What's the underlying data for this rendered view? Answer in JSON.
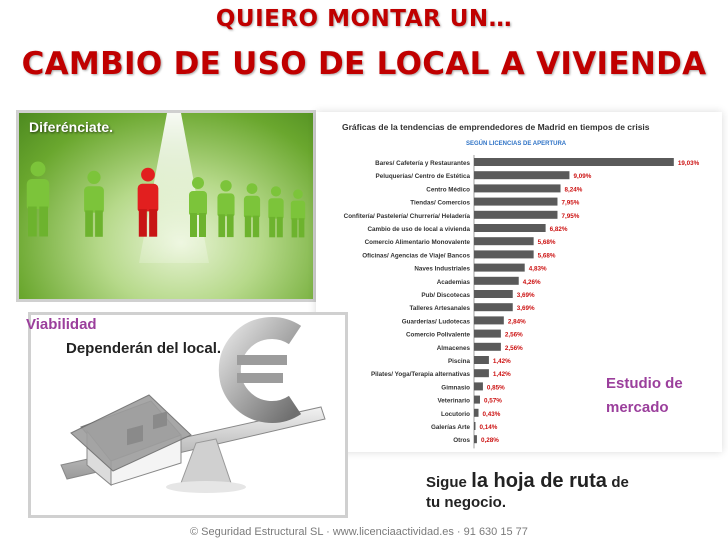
{
  "header": {
    "title_line1": "QUIERO MONTAR UN…",
    "title_line2": "CAMBIO DE USO DE LOCAL A VIVIENDA"
  },
  "panel_diferenciate": {
    "label": "Diferénciate."
  },
  "panel_viabilidad": {
    "label": "Viabilidad",
    "text": "Dependerán del local."
  },
  "estudio": {
    "line1": "Estudio de",
    "line2": "mercado"
  },
  "sigue": {
    "w1": "Sigue",
    "w2": "la hoja de ruta",
    "w3": "de",
    "line2": "tu negocio."
  },
  "footer": "© Seguridad Estructural SL ·  www.licenciaactividad.es  ·  91 630 15 77",
  "colors": {
    "title_red": "#c00000",
    "purple": "#9b3f9c",
    "bar_dark": "#5a5a5a",
    "value_red": "#cc1111",
    "subtitle_blue": "#2f73c6"
  },
  "chart_data": {
    "type": "bar",
    "orientation": "horizontal",
    "title": "Gráficas de la tendencias de emprendedores de Madrid en tiempos de crisis",
    "subtitle": "SEGÚN LICENCIAS DE APERTURA",
    "unit": "%",
    "categories": [
      "Bares/ Cafetería y Restaurantes",
      "Peluquerías/ Centro de Estética",
      "Centro Médico",
      "Tiendas/ Comercios",
      "Confitería/ Pastelería/ Churrería/ Heladería",
      "Cambio de uso de local a vivienda",
      "Comercio Alimentario Monovalente",
      "Oficinas/ Agencias de Viaje/ Bancos",
      "Naves Industriales",
      "Academias",
      "Pub/ Discotecas",
      "Talleres Artesanales",
      "Guarderías/ Ludotecas",
      "Comercio Polivalente",
      "Almacenes",
      "Piscina",
      "Pilates/ Yoga/Terapia alternativas",
      "Gimnasio",
      "Veterinario",
      "Locutorio",
      "Galerías Arte",
      "Otros"
    ],
    "values": [
      19.03,
      9.09,
      8.24,
      7.95,
      7.95,
      6.82,
      5.68,
      5.68,
      4.83,
      4.26,
      3.69,
      3.69,
      2.84,
      2.56,
      2.56,
      1.42,
      1.42,
      0.85,
      0.57,
      0.43,
      0.14,
      0.28
    ],
    "labels": [
      "19,03%",
      "9,09%",
      "8,24%",
      "7,95%",
      "7,95%",
      "6,82%",
      "5,68%",
      "5,68%",
      "4,83%",
      "4,26%",
      "3,69%",
      "3,69%",
      "2,84%",
      "2,56%",
      "2,56%",
      "1,42%",
      "1,42%",
      "0,85%",
      "0,57%",
      "0,43%",
      "0,14%",
      "0,28%"
    ],
    "xlim": [
      0,
      20
    ],
    "grid": false,
    "legend": "none"
  }
}
